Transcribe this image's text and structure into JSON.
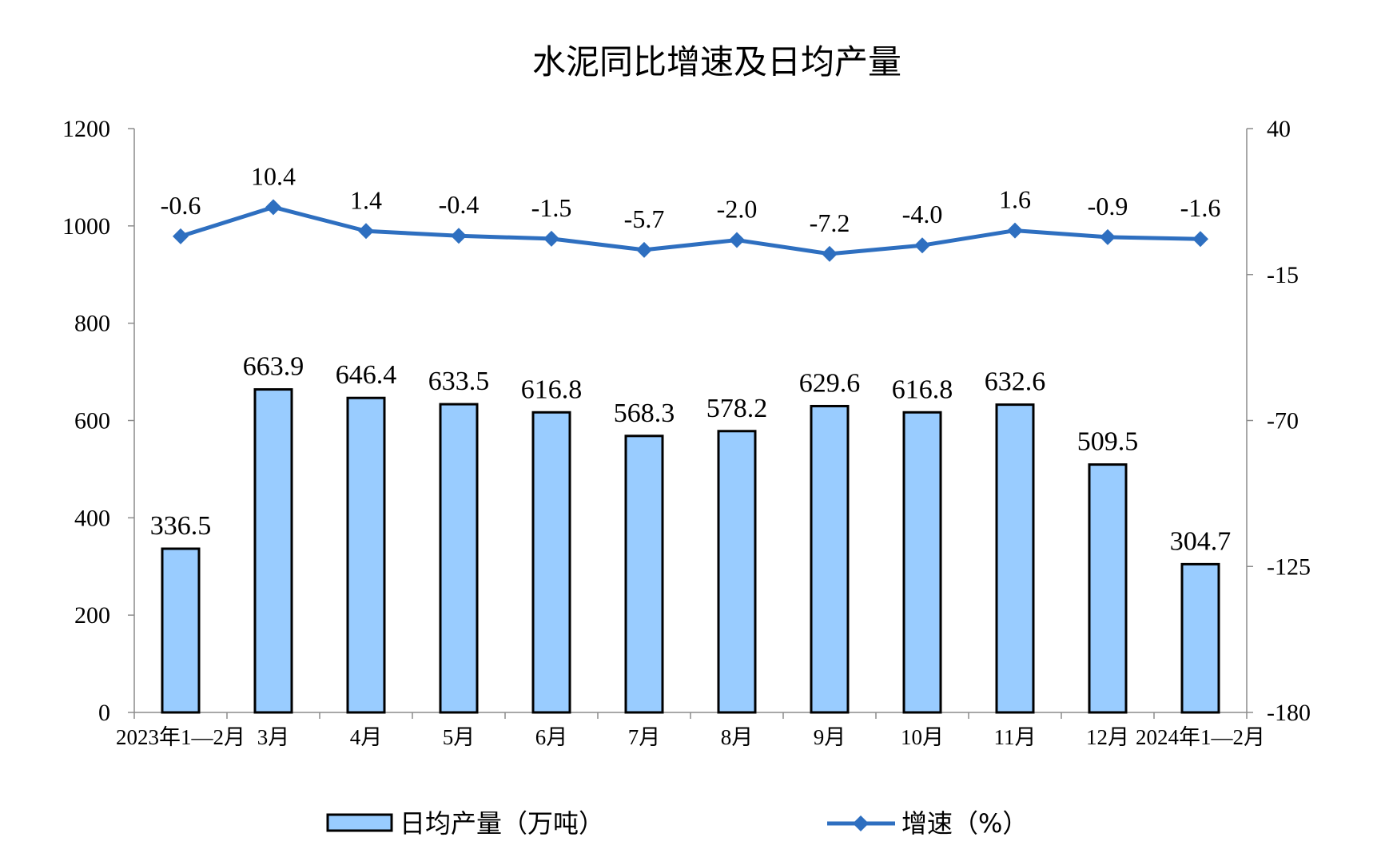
{
  "chart_data": {
    "type": "bar",
    "title": "水泥同比增速及日均产量",
    "categories": [
      "2023年1—2月",
      "3月",
      "4月",
      "5月",
      "6月",
      "7月",
      "8月",
      "9月",
      "10月",
      "11月",
      "12月",
      "2024年1—2月"
    ],
    "series": [
      {
        "name": "日均产量（万吨）",
        "type": "bar",
        "axis": "left",
        "color": "#99CCFF",
        "values": [
          336.5,
          663.9,
          646.4,
          633.5,
          616.8,
          568.3,
          578.2,
          629.6,
          616.8,
          632.6,
          509.5,
          304.7
        ],
        "labels": [
          "336.5",
          "663.9",
          "646.4",
          "633.5",
          "616.8",
          "568.3",
          "578.2",
          "629.6",
          "616.8",
          "632.6",
          "509.5",
          "304.7"
        ]
      },
      {
        "name": "增速（%）",
        "type": "line",
        "axis": "right",
        "color": "#2E6FC0",
        "marker": "diamond",
        "values": [
          -0.6,
          10.4,
          1.4,
          -0.4,
          -1.5,
          -5.7,
          -2.0,
          -7.2,
          -4.0,
          1.6,
          -0.9,
          -1.6
        ],
        "labels": [
          "-0.6",
          "10.4",
          "1.4",
          "-0.4",
          "-1.5",
          "-5.7",
          "-2.0",
          "-7.2",
          "-4.0",
          "1.6",
          "-0.9",
          "-1.6"
        ]
      }
    ],
    "y_left": {
      "min": 0,
      "max": 1200,
      "ticks": [
        0,
        200,
        400,
        600,
        800,
        1000,
        1200
      ]
    },
    "y_right": {
      "min": -180,
      "max": 40,
      "ticks": [
        -180,
        -125,
        -70,
        -15,
        40
      ]
    },
    "grid": false,
    "legend_position": "bottom"
  }
}
